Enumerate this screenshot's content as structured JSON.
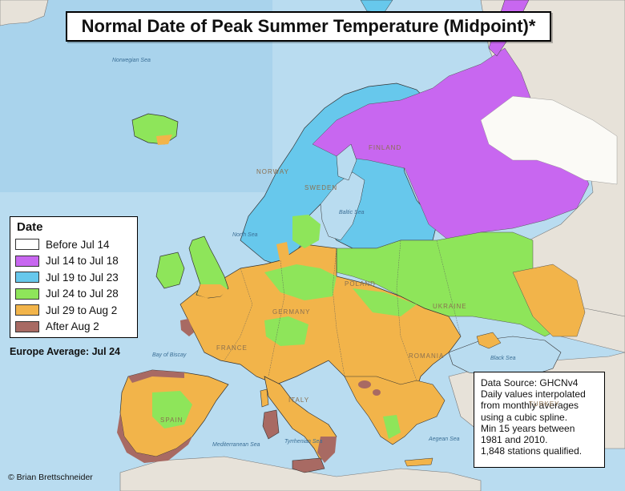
{
  "title": "Normal Date of Peak Summer Temperature (Midpoint)*",
  "legend": {
    "title": "Date",
    "items": [
      {
        "label": "Before Jul 14",
        "color": "#ffffff"
      },
      {
        "label": "Jul 14 to Jul 18",
        "color": "#c867f0"
      },
      {
        "label": "Jul 19 to Jul 23",
        "color": "#67c8ec"
      },
      {
        "label": "Jul 24 to Jul 28",
        "color": "#8ee55a"
      },
      {
        "label": "Jul 29 to Aug 2",
        "color": "#f2b44a"
      },
      {
        "label": "After Aug 2",
        "color": "#a86a63"
      }
    ]
  },
  "europe_average": "Europe Average: Jul 24",
  "source": {
    "lines": [
      "Data Source: GHCNv4",
      "Daily values interpolated",
      "from monthly averages",
      "using a cubic spline.",
      "Min 15 years between",
      "1981 and 2010.",
      "1,848 stations qualified."
    ]
  },
  "credit": "© Brian Brettschneider",
  "colors": {
    "ocean": "#b9dcf0",
    "ocean_deep": "#9fcbe6",
    "land_gray": "#e7e2d9",
    "before_jul14": "#fbfaf6"
  },
  "base_map_labels": {
    "seas": [
      "Norwegian Sea",
      "North Sea",
      "Baltic Sea",
      "Mediterranean Sea",
      "Black Sea",
      "Tyrrhenian Sea",
      "Aegean Sea",
      "Bay of Biscay"
    ],
    "countries": [
      "NORWAY",
      "SWEDEN",
      "FINLAND",
      "FRANCE",
      "SPAIN",
      "UKRAINE",
      "ROMANIA",
      "TURKEY",
      "ITALY",
      "GERMANY",
      "POLAND"
    ]
  }
}
